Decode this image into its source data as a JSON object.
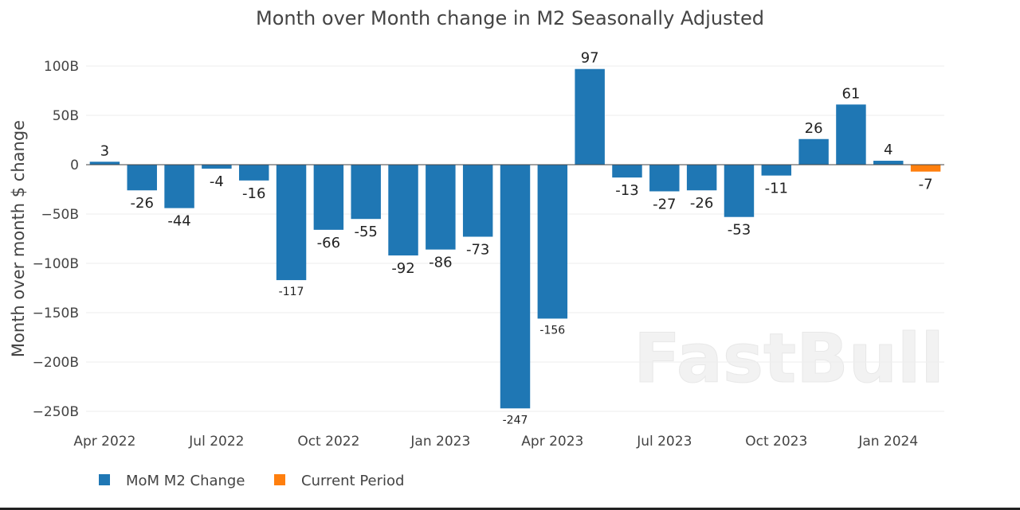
{
  "chart_data": {
    "type": "bar",
    "title": "Month over Month change in M2 Seasonally Adjusted",
    "xlabel": "",
    "ylabel": "Month over month $ change",
    "ylim": [
      -260,
      110
    ],
    "yticks": [
      100,
      50,
      0,
      -50,
      -100,
      -150,
      -200,
      -250
    ],
    "ytick_labels": [
      "100B",
      "50B",
      "0",
      "−50B",
      "−100B",
      "−150B",
      "−200B",
      "−250B"
    ],
    "xtick_labels": [
      {
        "index": 0,
        "label": "Apr 2022"
      },
      {
        "index": 3,
        "label": "Jul 2022"
      },
      {
        "index": 6,
        "label": "Oct 2022"
      },
      {
        "index": 9,
        "label": "Jan 2023"
      },
      {
        "index": 12,
        "label": "Apr 2023"
      },
      {
        "index": 15,
        "label": "Jul 2023"
      },
      {
        "index": 18,
        "label": "Oct 2023"
      },
      {
        "index": 21,
        "label": "Jan 2024"
      }
    ],
    "categories": [
      "Apr 2022",
      "May 2022",
      "Jun 2022",
      "Jul 2022",
      "Aug 2022",
      "Sep 2022",
      "Oct 2022",
      "Nov 2022",
      "Dec 2022",
      "Jan 2023",
      "Feb 2023",
      "Mar 2023",
      "Apr 2023",
      "May 2023",
      "Jun 2023",
      "Jul 2023",
      "Aug 2023",
      "Sep 2023",
      "Oct 2023",
      "Nov 2023",
      "Dec 2023",
      "Jan 2024",
      "Feb 2024"
    ],
    "series": [
      {
        "name": "MoM M2 Change",
        "color": "#1f77b4",
        "values": [
          3,
          -26,
          -44,
          -4,
          -16,
          -117,
          -66,
          -55,
          -92,
          -86,
          -73,
          -247,
          -156,
          97,
          -13,
          -27,
          -26,
          -53,
          -11,
          26,
          61,
          4,
          null
        ]
      },
      {
        "name": "Current Period",
        "color": "#ff7f0e",
        "values": [
          null,
          null,
          null,
          null,
          null,
          null,
          null,
          null,
          null,
          null,
          null,
          null,
          null,
          null,
          null,
          null,
          null,
          null,
          null,
          null,
          null,
          null,
          -7
        ]
      }
    ],
    "grid": true,
    "legend": "bottom-left"
  },
  "watermark": "FastBull"
}
